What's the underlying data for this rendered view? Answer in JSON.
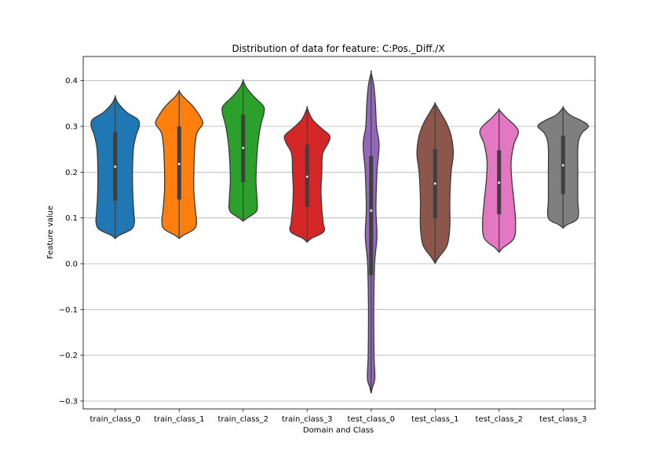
{
  "chart_data": {
    "type": "violin",
    "title": "Distribution of data for feature: C:Pos._Diff./X",
    "xlabel": "Domain and Class",
    "ylabel": "Feature value",
    "ylim": [
      -0.32,
      0.4
    ],
    "yticks": [
      -0.3,
      -0.2,
      -0.1,
      0.0,
      0.1,
      0.2,
      0.3,
      0.4
    ],
    "ytick_labels": [
      "−0.3",
      "−0.2",
      "−0.1",
      "0.0",
      "0.1",
      "0.2",
      "0.3",
      "0.4"
    ],
    "grid": "horizontal",
    "categories": [
      "train_class_0",
      "train_class_1",
      "train_class_2",
      "train_class_3",
      "test_class_0",
      "test_class_1",
      "test_class_2",
      "test_class_3"
    ],
    "series": [
      {
        "color": "#1f77b4",
        "min": 0.055,
        "max": 0.365,
        "q1": 0.138,
        "median": 0.212,
        "q3": 0.288,
        "density": [
          [
            0.055,
            0.0
          ],
          [
            0.062,
            0.15
          ],
          [
            0.075,
            0.6
          ],
          [
            0.09,
            0.72
          ],
          [
            0.11,
            0.7
          ],
          [
            0.15,
            0.66
          ],
          [
            0.2,
            0.65
          ],
          [
            0.25,
            0.68
          ],
          [
            0.28,
            0.78
          ],
          [
            0.3,
            0.9
          ],
          [
            0.315,
            0.85
          ],
          [
            0.33,
            0.45
          ],
          [
            0.35,
            0.12
          ],
          [
            0.365,
            0.0
          ]
        ]
      },
      {
        "color": "#ff7f0e",
        "min": 0.055,
        "max": 0.377,
        "q1": 0.14,
        "median": 0.218,
        "q3": 0.3,
        "density": [
          [
            0.055,
            0.0
          ],
          [
            0.062,
            0.15
          ],
          [
            0.075,
            0.55
          ],
          [
            0.09,
            0.65
          ],
          [
            0.12,
            0.6
          ],
          [
            0.16,
            0.55
          ],
          [
            0.2,
            0.55
          ],
          [
            0.25,
            0.58
          ],
          [
            0.285,
            0.66
          ],
          [
            0.305,
            0.88
          ],
          [
            0.32,
            0.8
          ],
          [
            0.345,
            0.5
          ],
          [
            0.365,
            0.15
          ],
          [
            0.377,
            0.0
          ]
        ]
      },
      {
        "color": "#2ca02c",
        "min": 0.093,
        "max": 0.4,
        "q1": 0.178,
        "median": 0.253,
        "q3": 0.326,
        "density": [
          [
            0.093,
            0.0
          ],
          [
            0.1,
            0.15
          ],
          [
            0.115,
            0.5
          ],
          [
            0.14,
            0.52
          ],
          [
            0.18,
            0.48
          ],
          [
            0.22,
            0.5
          ],
          [
            0.26,
            0.55
          ],
          [
            0.3,
            0.65
          ],
          [
            0.33,
            0.78
          ],
          [
            0.345,
            0.75
          ],
          [
            0.365,
            0.4
          ],
          [
            0.385,
            0.12
          ],
          [
            0.4,
            0.0
          ]
        ]
      },
      {
        "color": "#d62728",
        "min": 0.047,
        "max": 0.34,
        "q1": 0.124,
        "median": 0.19,
        "q3": 0.26,
        "density": [
          [
            0.047,
            0.0
          ],
          [
            0.055,
            0.15
          ],
          [
            0.07,
            0.62
          ],
          [
            0.09,
            0.6
          ],
          [
            0.12,
            0.55
          ],
          [
            0.16,
            0.52
          ],
          [
            0.2,
            0.55
          ],
          [
            0.24,
            0.58
          ],
          [
            0.265,
            0.8
          ],
          [
            0.28,
            0.84
          ],
          [
            0.295,
            0.55
          ],
          [
            0.315,
            0.2
          ],
          [
            0.34,
            0.0
          ]
        ]
      },
      {
        "color": "#9467bd",
        "min": -0.283,
        "max": 0.418,
        "q1": -0.025,
        "median": 0.116,
        "q3": 0.235,
        "density": [
          [
            -0.283,
            0.0
          ],
          [
            -0.27,
            0.05
          ],
          [
            -0.25,
            0.14
          ],
          [
            -0.2,
            0.11
          ],
          [
            -0.1,
            0.1
          ],
          [
            0.0,
            0.13
          ],
          [
            0.06,
            0.22
          ],
          [
            0.12,
            0.18
          ],
          [
            0.2,
            0.22
          ],
          [
            0.26,
            0.3
          ],
          [
            0.3,
            0.2
          ],
          [
            0.35,
            0.16
          ],
          [
            0.39,
            0.1
          ],
          [
            0.418,
            0.0
          ]
        ]
      },
      {
        "color": "#8c564b",
        "min": 0.001,
        "max": 0.35,
        "q1": 0.1,
        "median": 0.175,
        "q3": 0.25,
        "density": [
          [
            0.001,
            0.0
          ],
          [
            0.015,
            0.15
          ],
          [
            0.04,
            0.45
          ],
          [
            0.08,
            0.55
          ],
          [
            0.14,
            0.55
          ],
          [
            0.2,
            0.6
          ],
          [
            0.24,
            0.68
          ],
          [
            0.28,
            0.6
          ],
          [
            0.31,
            0.4
          ],
          [
            0.335,
            0.15
          ],
          [
            0.35,
            0.0
          ]
        ]
      },
      {
        "color": "#e377c2",
        "min": 0.025,
        "max": 0.336,
        "q1": 0.108,
        "median": 0.177,
        "q3": 0.248,
        "density": [
          [
            0.025,
            0.0
          ],
          [
            0.035,
            0.15
          ],
          [
            0.055,
            0.55
          ],
          [
            0.09,
            0.62
          ],
          [
            0.14,
            0.55
          ],
          [
            0.18,
            0.48
          ],
          [
            0.22,
            0.45
          ],
          [
            0.26,
            0.55
          ],
          [
            0.285,
            0.72
          ],
          [
            0.3,
            0.62
          ],
          [
            0.32,
            0.25
          ],
          [
            0.336,
            0.0
          ]
        ]
      },
      {
        "color": "#7f7f7f",
        "min": 0.078,
        "max": 0.341,
        "q1": 0.152,
        "median": 0.215,
        "q3": 0.28,
        "density": [
          [
            0.078,
            0.0
          ],
          [
            0.085,
            0.15
          ],
          [
            0.1,
            0.55
          ],
          [
            0.14,
            0.55
          ],
          [
            0.2,
            0.55
          ],
          [
            0.26,
            0.56
          ],
          [
            0.285,
            0.7
          ],
          [
            0.3,
            0.95
          ],
          [
            0.312,
            0.7
          ],
          [
            0.325,
            0.25
          ],
          [
            0.341,
            0.0
          ]
        ]
      }
    ]
  }
}
